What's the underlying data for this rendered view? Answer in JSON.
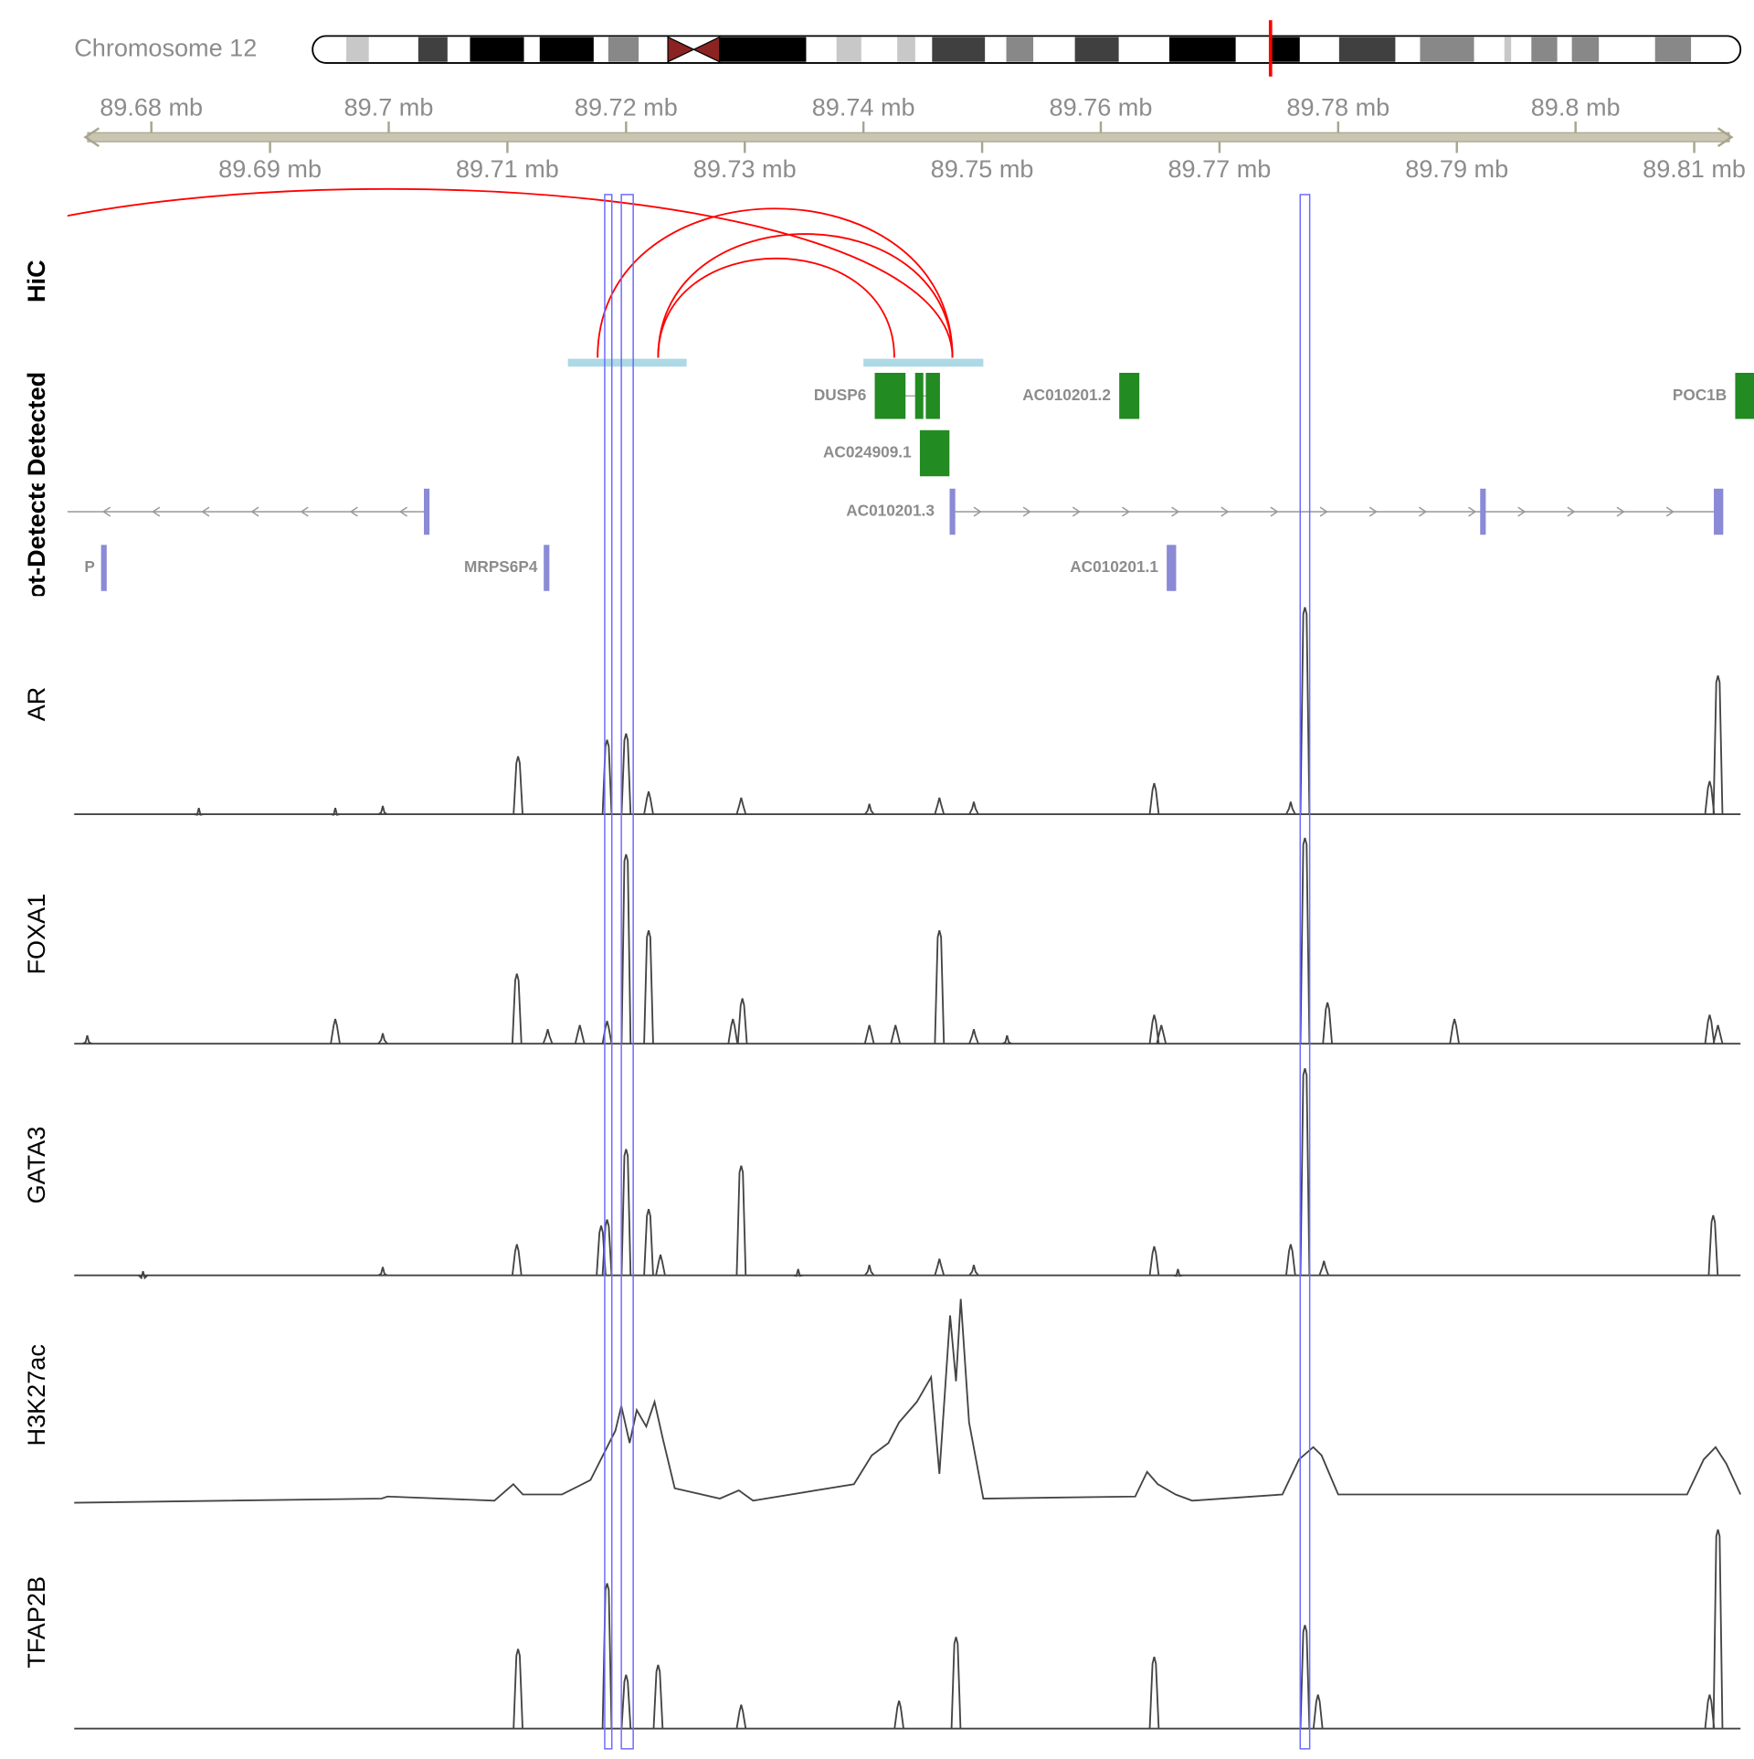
{
  "chart_data": {
    "type": "genome",
    "chromosome": "Chromosome 12",
    "xlim": [
      89.6735,
      89.8139
    ],
    "xticks": [
      {
        "value": 89.68,
        "label": "89.68 mb"
      },
      {
        "value": 89.69,
        "label": "89.69 mb"
      },
      {
        "value": 89.7,
        "label": "89.7 mb"
      },
      {
        "value": 89.71,
        "label": "89.71 mb"
      },
      {
        "value": 89.72,
        "label": "89.72 mb"
      },
      {
        "value": 89.73,
        "label": "89.73 mb"
      },
      {
        "value": 89.74,
        "label": "89.74 mb"
      },
      {
        "value": 89.75,
        "label": "89.75 mb"
      },
      {
        "value": 89.76,
        "label": "89.76 mb"
      },
      {
        "value": 89.77,
        "label": "89.77 mb"
      },
      {
        "value": 89.78,
        "label": "89.78 mb"
      },
      {
        "value": 89.79,
        "label": "89.79 mb"
      },
      {
        "value": 89.8,
        "label": "89.8 mb"
      },
      {
        "value": 89.81,
        "label": "89.81 mb"
      }
    ],
    "highlight_color": "#6b6bff",
    "highlights": [
      [
        89.7182,
        89.7188
      ],
      [
        89.7196,
        89.7206
      ],
      [
        89.7768,
        89.7776
      ]
    ],
    "hic": {
      "title": "HiC",
      "color": "#ff0000",
      "anchor_color": "#add8e6",
      "anchors": [
        [
          89.7151,
          89.7251
        ],
        [
          89.74,
          89.7501
        ]
      ],
      "arcs": [
        {
          "start": 89.6523,
          "end": 89.7475
        },
        {
          "start": 89.7176,
          "end": 89.7475
        },
        {
          "start": 89.7227,
          "end": 89.7475
        },
        {
          "start": 89.7227,
          "end": 89.7426
        }
      ]
    },
    "gene_tracks": [
      {
        "title": "Detected",
        "color": "#228b22",
        "genes": [
          {
            "name": "DUSP6",
            "row": 0,
            "exons": [
              [
                89.741,
                89.7435
              ],
              [
                89.7444,
                89.745
              ],
              [
                89.7453,
                89.7464
              ]
            ]
          },
          {
            "name": "AC010201.2",
            "row": 0,
            "exons": [
              [
                89.7616,
                89.7632
              ]
            ]
          },
          {
            "name": "POC1B",
            "row": 0,
            "exons": [
              [
                89.8135,
                89.815
              ]
            ]
          },
          {
            "name": "AC024909.1",
            "row": 1,
            "exons": [
              [
                89.7448,
                89.7472
              ]
            ]
          }
        ]
      },
      {
        "title": "Not-Detected",
        "color": "#8a8ad6",
        "genes": [
          {
            "row": 0,
            "strand": "-",
            "start": 89.67,
            "end": 89.7033,
            "exons": [
              [
                89.7032,
                89.7033
              ]
            ]
          },
          {
            "name": "AC010201.3",
            "row": 0,
            "strand": "+",
            "start": 89.7475,
            "end": 89.8124,
            "exons": [
              [
                89.7475,
                89.7477
              ],
              [
                89.7922,
                89.7924
              ],
              [
                89.8117,
                89.8124
              ]
            ]
          },
          {
            "name": "P",
            "row": 1,
            "exons": [
              [
                89.676,
                89.6762
              ]
            ]
          },
          {
            "name": "MRPS6P4",
            "row": 1,
            "exons": [
              [
                89.7133,
                89.7135
              ]
            ]
          },
          {
            "name": "AC010201.1",
            "row": 1,
            "exons": [
              [
                89.7656,
                89.7663
              ]
            ]
          }
        ]
      }
    ],
    "signals": [
      {
        "name": "AR",
        "color": "#444444",
        "style": "spike",
        "ylim": [
          0,
          100
        ],
        "x": [
          89.684,
          89.6955,
          89.6995,
          89.7109,
          89.7184,
          89.72,
          89.7219,
          89.7297,
          89.7405,
          89.7464,
          89.7493,
          89.7645,
          89.776,
          89.7772,
          89.8113,
          89.812
        ],
        "values": [
          3,
          3,
          4,
          28,
          36,
          39,
          11,
          8,
          5,
          8,
          6,
          15,
          6,
          100,
          16,
          67
        ]
      },
      {
        "name": "FOXA1",
        "color": "#444444",
        "style": "spike",
        "ylim": [
          0,
          100
        ],
        "x": [
          89.6746,
          89.6955,
          89.6995,
          89.7108,
          89.7134,
          89.7161,
          89.7184,
          89.72,
          89.7219,
          89.729,
          89.7298,
          89.7405,
          89.7427,
          89.7464,
          89.7493,
          89.7521,
          89.7645,
          89.7651,
          89.7772,
          89.7791,
          89.7898,
          89.8113,
          89.812
        ],
        "values": [
          4,
          12,
          5,
          34,
          7,
          9,
          11,
          92,
          55,
          12,
          22,
          9,
          9,
          55,
          7,
          4,
          14,
          9,
          100,
          20,
          12,
          14,
          9
        ]
      },
      {
        "name": "GATA3",
        "color": "#444444",
        "style": "spike",
        "ylim": [
          0,
          100
        ],
        "x": [
          89.6793,
          89.6995,
          89.7108,
          89.7179,
          89.7184,
          89.72,
          89.7219,
          89.7229,
          89.7297,
          89.7345,
          89.7405,
          89.7464,
          89.7493,
          89.7645,
          89.7665,
          89.776,
          89.7772,
          89.7788,
          89.8116
        ],
        "values": [
          2,
          4,
          15,
          24,
          27,
          61,
          32,
          10,
          53,
          3,
          5,
          8,
          5,
          14,
          3,
          15,
          100,
          7,
          29
        ]
      },
      {
        "name": "H3K27ac",
        "color": "#444444",
        "style": "line",
        "ylim": [
          0,
          100
        ],
        "x": [
          89.6735,
          89.6994,
          89.6999,
          89.7089,
          89.7105,
          89.7113,
          89.7146,
          89.717,
          89.7184,
          89.7191,
          89.7196,
          89.7203,
          89.7209,
          89.7217,
          89.7224,
          89.7231,
          89.7241,
          89.7279,
          89.7295,
          89.7307,
          89.7392,
          89.7407,
          89.7421,
          89.743,
          89.7445,
          89.7457,
          89.7464,
          89.7473,
          89.7478,
          89.7482,
          89.7489,
          89.7501,
          89.7629,
          89.7639,
          89.7648,
          89.7663,
          89.7677,
          89.7753,
          89.7767,
          89.7779,
          89.7786,
          89.78,
          89.8094,
          89.8108,
          89.8118,
          89.8127,
          89.8139
        ],
        "values": [
          1,
          3,
          4,
          2,
          10,
          5,
          5,
          12,
          28,
          36,
          48,
          30,
          46,
          38,
          50,
          32,
          8,
          3,
          7,
          2,
          10,
          24,
          30,
          40,
          50,
          62,
          15,
          92,
          60,
          100,
          40,
          3,
          4,
          16,
          10,
          5,
          2,
          5,
          22,
          28,
          24,
          5,
          5,
          22,
          28,
          20,
          5
        ]
      },
      {
        "name": "TFAP2B",
        "color": "#444444",
        "style": "spike",
        "ylim": [
          0,
          100
        ],
        "x": [
          89.7109,
          89.7184,
          89.72,
          89.7227,
          89.7297,
          89.743,
          89.7478,
          89.7645,
          89.7772,
          89.7783,
          89.8113,
          89.812
        ],
        "values": [
          40,
          73,
          27,
          32,
          12,
          14,
          46,
          36,
          52,
          17,
          17,
          100
        ]
      }
    ]
  }
}
